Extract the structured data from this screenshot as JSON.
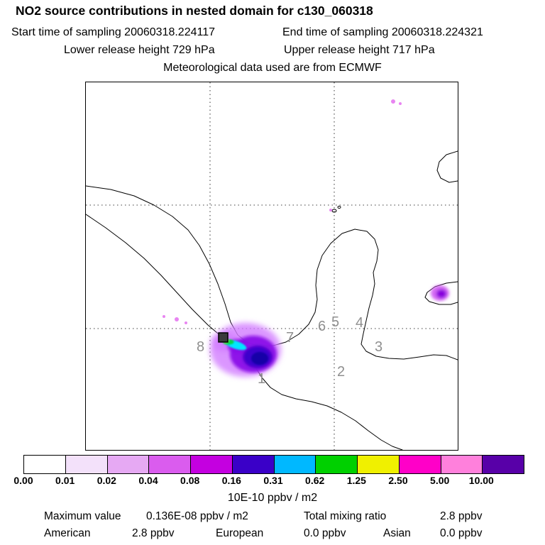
{
  "header": {
    "title": "NO2 source contributions in nested domain for c130_060318",
    "sampling": {
      "start": "Start time of sampling 20060318.224117",
      "end": "End time of sampling 20060318.224321"
    },
    "release": {
      "lower": "Lower release height  729 hPa",
      "upper": "Upper release height  717 hPa"
    },
    "met_source": "Meteorological data used are from ECMWF"
  },
  "map": {
    "region_labels": [
      "8",
      "7",
      "6",
      "5",
      "4",
      "3",
      "2",
      "1"
    ]
  },
  "chart_data": {
    "type": "heatmap",
    "title": "NO2 source contributions in nested domain for c130_060318",
    "subtitle_lines": [
      "Start time of sampling 20060318.224117   End time of sampling 20060318.224321",
      "Lower release height 729 hPa   Upper release height 717 hPa",
      "Meteorological data used are from ECMWF"
    ],
    "colorbar": {
      "units": "10E-10 ppbv / m2",
      "tick_labels": [
        "0.00",
        "0.01",
        "0.02",
        "0.04",
        "0.08",
        "0.16",
        "0.31",
        "0.62",
        "1.25",
        "2.50",
        "5.00",
        "10.00"
      ],
      "colors": [
        "#ffffff",
        "#f3e1fa",
        "#e6a9f3",
        "#da5cee",
        "#c400e0",
        "#3a00c8",
        "#00b8ff",
        "#00d000",
        "#f0f000",
        "#ff00c8",
        "#ff80dc",
        "#5800a8"
      ]
    },
    "map_region_labels": [
      "1",
      "2",
      "3",
      "4",
      "5",
      "6",
      "7",
      "8"
    ],
    "stats": {
      "maximum_label": "Maximum value",
      "maximum_value": "0.136E-08 ppbv / m2",
      "total_label": "Total mixing ratio",
      "total_value": "2.8 ppbv",
      "regions": [
        {
          "label": "American",
          "value": "2.8 ppbv"
        },
        {
          "label": "European",
          "value": "0.0 ppbv"
        },
        {
          "label": "Asian",
          "value": "0.0 ppbv"
        }
      ]
    }
  }
}
